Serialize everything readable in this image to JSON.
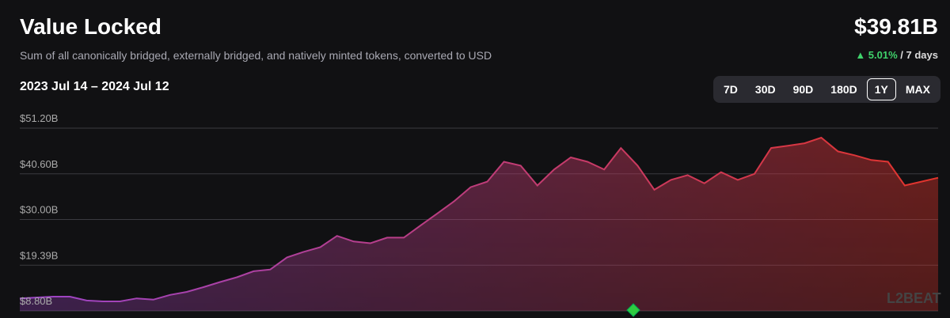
{
  "header": {
    "title": "Value Locked",
    "subtitle": "Sum of all canonically bridged, externally bridged, and natively minted tokens, converted to USD",
    "total": "$39.81B",
    "change": "5.01%",
    "change_period": "/ 7 days",
    "range": "2023 Jul 14 – 2024 Jul 12"
  },
  "range_buttons": {
    "labels": [
      "7D",
      "30D",
      "90D",
      "180D",
      "1Y",
      "MAX"
    ],
    "selected": 4
  },
  "watermark": "L2BEAT",
  "chart_data": {
    "type": "area",
    "values": [
      11.7,
      11.9,
      12.1,
      12.1,
      11.2,
      11.0,
      11.0,
      11.7,
      11.4,
      12.5,
      13.2,
      14.3,
      15.5,
      16.6,
      18.0,
      18.4,
      21.2,
      22.5,
      23.6,
      26.2,
      24.9,
      24.5,
      25.8,
      25.8,
      28.6,
      31.4,
      34.2,
      37.5,
      38.8,
      43.4,
      42.5,
      37.9,
      41.6,
      44.4,
      43.4,
      41.6,
      46.6,
      42.5,
      36.9,
      39.2,
      40.3,
      38.4,
      41.0,
      39.2,
      40.6,
      46.6,
      47.1,
      47.7,
      49.0,
      45.8,
      44.9,
      43.8,
      43.4,
      37.9,
      38.8,
      39.7
    ],
    "ylim": [
      8.8,
      51.2
    ],
    "yticks": [
      {
        "value": 8.8,
        "label": "$8.80B"
      },
      {
        "value": 19.39,
        "label": "$19.39B"
      },
      {
        "value": 30.0,
        "label": "$30.00B"
      },
      {
        "value": 40.6,
        "label": "$40.60B"
      },
      {
        "value": 51.2,
        "label": "$51.20B"
      }
    ],
    "grid": true,
    "colors": [
      "#9b45c9",
      "#e2342b"
    ]
  }
}
